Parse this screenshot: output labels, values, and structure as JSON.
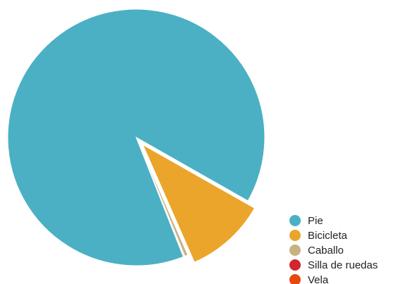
{
  "chart_data": {
    "type": "pie",
    "categories": [
      "Pie",
      "Bicicleta",
      "Caballo",
      "Silla de ruedas",
      "Vela"
    ],
    "values": [
      89.2,
      10.2,
      0.4,
      0.1,
      0.1
    ],
    "colors": [
      "#4bb0c4",
      "#eba52b",
      "#c9b27f",
      "#d0262c",
      "#e8470f"
    ],
    "exploded": [
      "Bicicleta"
    ],
    "legend_position": "bottom-right"
  }
}
